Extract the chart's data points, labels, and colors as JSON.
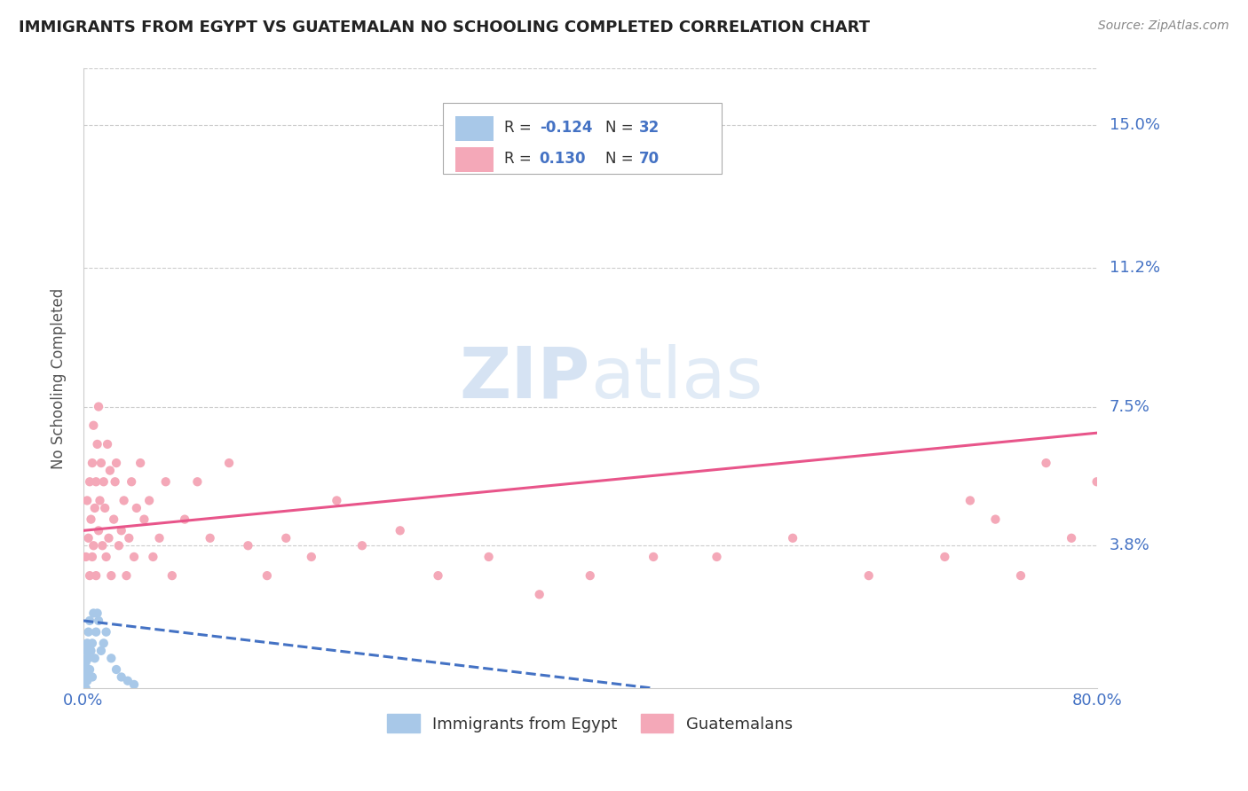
{
  "title": "IMMIGRANTS FROM EGYPT VS GUATEMALAN NO SCHOOLING COMPLETED CORRELATION CHART",
  "source": "Source: ZipAtlas.com",
  "ylabel": "No Schooling Completed",
  "ytick_labels": [
    "3.8%",
    "7.5%",
    "11.2%",
    "15.0%"
  ],
  "ytick_values": [
    0.038,
    0.075,
    0.112,
    0.15
  ],
  "xlim": [
    0.0,
    0.8
  ],
  "ylim": [
    0.0,
    0.165
  ],
  "legend1_label": "Immigrants from Egypt",
  "legend2_label": "Guatemalans",
  "r1": "-0.124",
  "n1": "32",
  "r2": "0.130",
  "n2": "70",
  "label_color": "#4472c4",
  "egypt_color": "#a8c8e8",
  "guatemala_color": "#f4a8b8",
  "egypt_line_color": "#4472c4",
  "guatemala_line_color": "#e8558a",
  "egypt_scatter_x": [
    0.001,
    0.001,
    0.001,
    0.002,
    0.002,
    0.002,
    0.002,
    0.003,
    0.003,
    0.003,
    0.003,
    0.004,
    0.004,
    0.004,
    0.005,
    0.005,
    0.006,
    0.007,
    0.007,
    0.008,
    0.009,
    0.01,
    0.011,
    0.012,
    0.014,
    0.016,
    0.018,
    0.022,
    0.026,
    0.03,
    0.035,
    0.04
  ],
  "egypt_scatter_y": [
    0.0,
    0.002,
    0.005,
    0.0,
    0.003,
    0.007,
    0.01,
    0.002,
    0.005,
    0.008,
    0.012,
    0.003,
    0.008,
    0.015,
    0.005,
    0.018,
    0.01,
    0.003,
    0.012,
    0.02,
    0.008,
    0.015,
    0.02,
    0.018,
    0.01,
    0.012,
    0.015,
    0.008,
    0.005,
    0.003,
    0.002,
    0.001
  ],
  "guatemala_scatter_x": [
    0.002,
    0.003,
    0.004,
    0.005,
    0.005,
    0.006,
    0.007,
    0.007,
    0.008,
    0.008,
    0.009,
    0.01,
    0.01,
    0.011,
    0.012,
    0.012,
    0.013,
    0.014,
    0.015,
    0.016,
    0.017,
    0.018,
    0.019,
    0.02,
    0.021,
    0.022,
    0.024,
    0.025,
    0.026,
    0.028,
    0.03,
    0.032,
    0.034,
    0.036,
    0.038,
    0.04,
    0.042,
    0.045,
    0.048,
    0.052,
    0.055,
    0.06,
    0.065,
    0.07,
    0.08,
    0.09,
    0.1,
    0.115,
    0.13,
    0.145,
    0.16,
    0.18,
    0.2,
    0.22,
    0.25,
    0.28,
    0.32,
    0.36,
    0.4,
    0.45,
    0.5,
    0.56,
    0.62,
    0.68,
    0.7,
    0.72,
    0.74,
    0.76,
    0.78,
    0.8
  ],
  "guatemala_scatter_y": [
    0.035,
    0.05,
    0.04,
    0.055,
    0.03,
    0.045,
    0.06,
    0.035,
    0.07,
    0.038,
    0.048,
    0.055,
    0.03,
    0.065,
    0.042,
    0.075,
    0.05,
    0.06,
    0.038,
    0.055,
    0.048,
    0.035,
    0.065,
    0.04,
    0.058,
    0.03,
    0.045,
    0.055,
    0.06,
    0.038,
    0.042,
    0.05,
    0.03,
    0.04,
    0.055,
    0.035,
    0.048,
    0.06,
    0.045,
    0.05,
    0.035,
    0.04,
    0.055,
    0.03,
    0.045,
    0.055,
    0.04,
    0.06,
    0.038,
    0.03,
    0.04,
    0.035,
    0.05,
    0.038,
    0.042,
    0.03,
    0.035,
    0.025,
    0.03,
    0.035,
    0.035,
    0.04,
    0.03,
    0.035,
    0.05,
    0.045,
    0.03,
    0.06,
    0.04,
    0.055
  ],
  "egypt_line_x": [
    0.0,
    0.45
  ],
  "egypt_line_y": [
    0.018,
    0.0
  ],
  "guat_line_x": [
    0.0,
    0.8
  ],
  "guat_line_y": [
    0.042,
    0.068
  ]
}
